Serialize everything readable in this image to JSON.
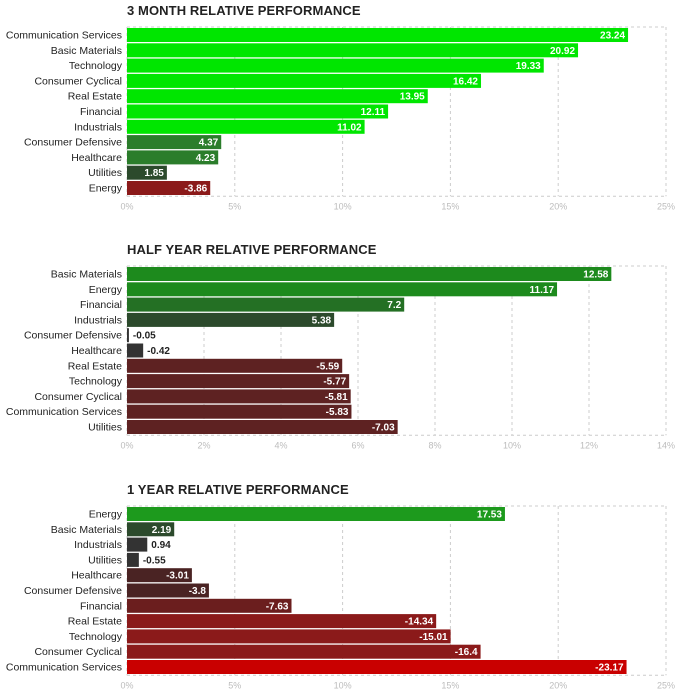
{
  "chart_data": [
    {
      "type": "bar",
      "orientation": "horizontal",
      "title": "3 MONTH RELATIVE PERFORMANCE",
      "categories": [
        "Communication Services",
        "Basic Materials",
        "Technology",
        "Consumer Cyclical",
        "Real Estate",
        "Financial",
        "Industrials",
        "Consumer Defensive",
        "Healthcare",
        "Utilities",
        "Energy"
      ],
      "values": [
        23.24,
        20.92,
        19.33,
        16.42,
        13.95,
        12.11,
        11.02,
        4.37,
        4.23,
        1.85,
        -3.86
      ],
      "value_labels": [
        "23.24",
        "20.92",
        "19.33",
        "16.42",
        "13.95",
        "12.11",
        "11.02",
        "4.37",
        "4.23",
        "1.85",
        "-3.86"
      ],
      "colors": [
        "#00e600",
        "#00e600",
        "#00e600",
        "#00e600",
        "#00e600",
        "#00e600",
        "#00e600",
        "#2b7d2b",
        "#2b7d2b",
        "#2c4a2c",
        "#8b1a1a"
      ],
      "xlim": [
        0,
        25
      ],
      "xticks": [
        0,
        5,
        10,
        15,
        20,
        25
      ],
      "xtick_labels": [
        "0%",
        "5%",
        "10%",
        "15%",
        "20%",
        "25%"
      ],
      "grid": true
    },
    {
      "type": "bar",
      "orientation": "horizontal",
      "title": "HALF YEAR RELATIVE PERFORMANCE",
      "categories": [
        "Basic Materials",
        "Energy",
        "Financial",
        "Industrials",
        "Consumer Defensive",
        "Healthcare",
        "Real Estate",
        "Technology",
        "Consumer Cyclical",
        "Communication Services",
        "Utilities"
      ],
      "values": [
        12.58,
        11.17,
        7.2,
        5.38,
        -0.05,
        -0.42,
        -5.59,
        -5.77,
        -5.81,
        -5.83,
        -7.03
      ],
      "value_labels": [
        "12.58",
        "11.17",
        "7.2",
        "5.38",
        "-0.05",
        "-0.42",
        "-5.59",
        "-5.77",
        "-5.81",
        "-5.83",
        "-7.03"
      ],
      "colors": [
        "#1d8a1d",
        "#1d8a1d",
        "#247024",
        "#2c4a2c",
        "#333333",
        "#333333",
        "#5e2222",
        "#5e2222",
        "#5e2222",
        "#5e2222",
        "#5e2222"
      ],
      "xlim": [
        0,
        14
      ],
      "xticks": [
        0,
        2,
        4,
        6,
        8,
        10,
        12,
        14
      ],
      "xtick_labels": [
        "0%",
        "2%",
        "4%",
        "6%",
        "8%",
        "10%",
        "12%",
        "14%"
      ],
      "grid": true
    },
    {
      "type": "bar",
      "orientation": "horizontal",
      "title": "1 YEAR RELATIVE PERFORMANCE",
      "categories": [
        "Energy",
        "Basic Materials",
        "Industrials",
        "Utilities",
        "Healthcare",
        "Consumer Defensive",
        "Financial",
        "Real Estate",
        "Technology",
        "Consumer Cyclical",
        "Communication Services"
      ],
      "values": [
        17.53,
        2.19,
        0.94,
        -0.55,
        -3.01,
        -3.8,
        -7.63,
        -14.34,
        -15.01,
        -16.4,
        -23.17
      ],
      "value_labels": [
        "17.53",
        "2.19",
        "0.94",
        "-0.55",
        "-3.01",
        "-3.8",
        "-7.63",
        "-14.34",
        "-15.01",
        "-16.4",
        "-23.17"
      ],
      "colors": [
        "#1d9a1d",
        "#2c4a2c",
        "#333333",
        "#333333",
        "#4a2323",
        "#4a2323",
        "#6b1e1e",
        "#8b1a1a",
        "#8b1a1a",
        "#8b1a1a",
        "#c90000"
      ],
      "xlim": [
        0,
        25
      ],
      "xticks": [
        0,
        5,
        10,
        15,
        20,
        25
      ],
      "xtick_labels": [
        "0%",
        "5%",
        "10%",
        "15%",
        "20%",
        "25%"
      ],
      "grid": true
    }
  ]
}
